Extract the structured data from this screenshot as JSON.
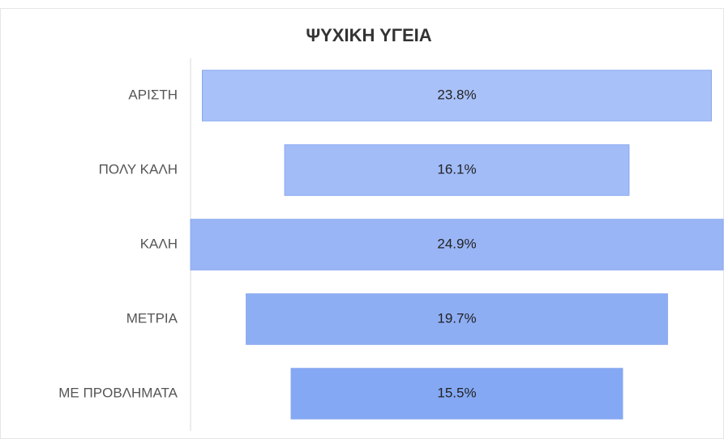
{
  "chart_data": {
    "type": "funnel",
    "title": "ΨΥΧΙΚΗ ΥΓΕΙΑ",
    "categories": [
      "ΑΡΙΣΤΗ",
      "ΠΟΛΥ ΚΑΛΗ",
      "ΚΑΛΗ",
      "ΜΕΤΡΙΑ",
      "ΜΕ ΠΡΟΒΛΗΜΑΤΑ"
    ],
    "values": [
      23.8,
      16.1,
      24.9,
      19.7,
      15.5
    ],
    "value_labels": [
      "23.8%",
      "16.1%",
      "24.9%",
      "19.7%",
      "15.5%"
    ],
    "colors": [
      "#a9c1f9",
      "#a2bcf8",
      "#99b5f5",
      "#8eaef4",
      "#84a8f3"
    ]
  }
}
